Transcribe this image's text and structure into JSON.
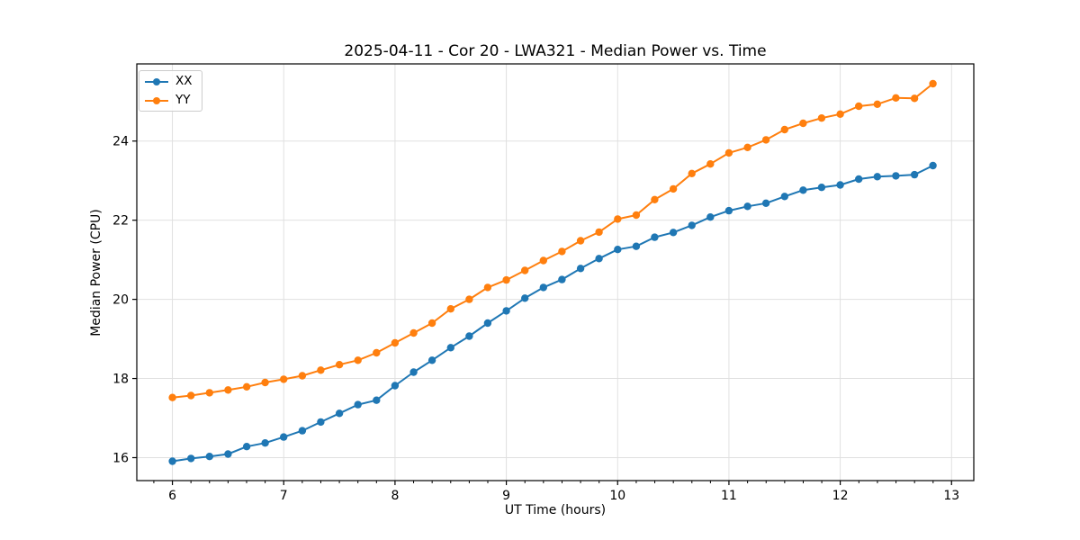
{
  "chart_data": {
    "type": "line",
    "title": "2025-04-11 - Cor 20 - LWA321 - Median Power vs. Time",
    "xlabel": "UT Time (hours)",
    "ylabel": "Median Power (CPU)",
    "xlim": [
      5.68,
      13.2
    ],
    "ylim": [
      15.42,
      25.95
    ],
    "x_major_ticks": [
      6,
      7,
      8,
      9,
      10,
      11,
      12,
      13
    ],
    "x_minor_tick_range": [
      5.833,
      13.167
    ],
    "x_minor_tick_step": 0.1667,
    "y_major_ticks": [
      16,
      18,
      20,
      22,
      24
    ],
    "grid": "major-only",
    "grid_color": "#e0e0e0",
    "axes_edge_color": "#000000",
    "legend_position": "upper-left",
    "x": [
      6.0,
      6.167,
      6.333,
      6.5,
      6.667,
      6.833,
      7.0,
      7.167,
      7.333,
      7.5,
      7.667,
      7.833,
      8.0,
      8.167,
      8.333,
      8.5,
      8.667,
      8.833,
      9.0,
      9.167,
      9.333,
      9.5,
      9.667,
      9.833,
      10.0,
      10.167,
      10.333,
      10.5,
      10.667,
      10.833,
      11.0,
      11.167,
      11.333,
      11.5,
      11.667,
      11.833,
      12.0,
      12.167,
      12.333,
      12.5,
      12.667,
      12.833
    ],
    "series": [
      {
        "name": "XX",
        "color": "#1f77b4",
        "values": [
          15.91,
          15.98,
          16.03,
          16.09,
          16.28,
          16.37,
          16.52,
          16.68,
          16.9,
          17.12,
          17.34,
          17.45,
          17.82,
          18.16,
          18.46,
          18.78,
          19.07,
          19.4,
          19.71,
          20.03,
          20.3,
          20.5,
          20.78,
          21.03,
          21.26,
          21.34,
          21.57,
          21.69,
          21.87,
          22.08,
          22.24,
          22.35,
          22.43,
          22.6,
          22.76,
          22.83,
          22.89,
          23.04,
          23.1,
          23.12,
          23.15,
          23.38
        ]
      },
      {
        "name": "YY",
        "color": "#ff7f0e",
        "values": [
          17.52,
          17.57,
          17.64,
          17.71,
          17.79,
          17.9,
          17.98,
          18.07,
          18.21,
          18.35,
          18.46,
          18.65,
          18.9,
          19.15,
          19.4,
          19.76,
          20.0,
          20.3,
          20.49,
          20.73,
          20.98,
          21.21,
          21.48,
          21.7,
          22.03,
          22.13,
          22.52,
          22.79,
          23.18,
          23.42,
          23.7,
          23.84,
          24.03,
          24.29,
          24.45,
          24.58,
          24.68,
          24.88,
          24.93,
          25.09,
          25.08,
          25.45
        ]
      }
    ]
  }
}
